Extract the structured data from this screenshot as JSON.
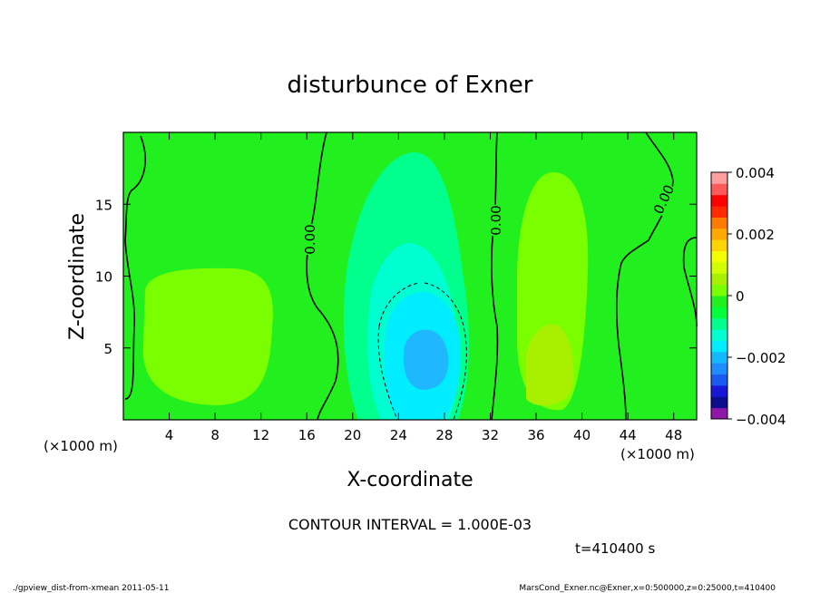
{
  "chart_data": {
    "type": "heatmap",
    "title": "disturbunce of Exner",
    "xlabel": "X-coordinate",
    "ylabel": "Z-coordinate",
    "x_unit": "(×1000 m)",
    "y_unit": "(×1000 m)",
    "x_ticks": [
      4,
      8,
      12,
      16,
      20,
      24,
      28,
      32,
      36,
      40,
      44,
      48
    ],
    "y_ticks": [
      5,
      10,
      15
    ],
    "xlim": [
      0,
      50
    ],
    "ylim": [
      0,
      20
    ],
    "contour_interval_text": "CONTOUR INTERVAL = 1.000E-03",
    "time_text": "t=410400 s",
    "contour_labels": [
      "0.00",
      "0.00",
      "0.00"
    ],
    "colorbar": {
      "min": -0.004,
      "max": 0.004,
      "tick_labels": [
        "0.004",
        "0.002",
        "0",
        "−0.002",
        "−0.004"
      ],
      "tick_values": [
        0.004,
        0.002,
        0,
        -0.002,
        -0.004
      ],
      "colors": [
        "#8f17a8",
        "#0d0d8f",
        "#1717d8",
        "#1a5af0",
        "#1f8cff",
        "#14b8ff",
        "#00ecff",
        "#00ffd0",
        "#00ff8c",
        "#00ff3a",
        "#22f01e",
        "#7aff00",
        "#a8f000",
        "#d2ff00",
        "#f4ff00",
        "#ffd400",
        "#ffa800",
        "#ff7a00",
        "#ff2a00",
        "#ff0000",
        "#ff5a5a",
        "#ff9e9e"
      ],
      "levels": [
        -0.004,
        -0.00364,
        -0.00327,
        -0.00291,
        -0.00255,
        -0.00218,
        -0.00182,
        -0.00145,
        -0.00109,
        -0.00073,
        -0.00036,
        0,
        0.00036,
        0.00073,
        0.00109,
        0.00145,
        0.00182,
        0.00218,
        0.00255,
        0.00291,
        0.00327,
        0.00364,
        0.004
      ]
    },
    "field_features": [
      {
        "label": "negative minimum",
        "x": 26,
        "z": 4.5,
        "value": -0.0021
      },
      {
        "label": "positive region left",
        "x": 9,
        "z": 6,
        "value": 0.0007
      },
      {
        "label": "positive maximum right",
        "x": 37,
        "z": 4,
        "value": 0.0012
      },
      {
        "label": "positive upper right",
        "x": 39,
        "z": 15,
        "value": 0.0008
      }
    ]
  },
  "footer": {
    "left": "./gpview_dist-from-xmean  2011-05-11",
    "right": "MarsCond_Exner.nc@Exner,x=0:500000,z=0:25000,t=410400"
  }
}
